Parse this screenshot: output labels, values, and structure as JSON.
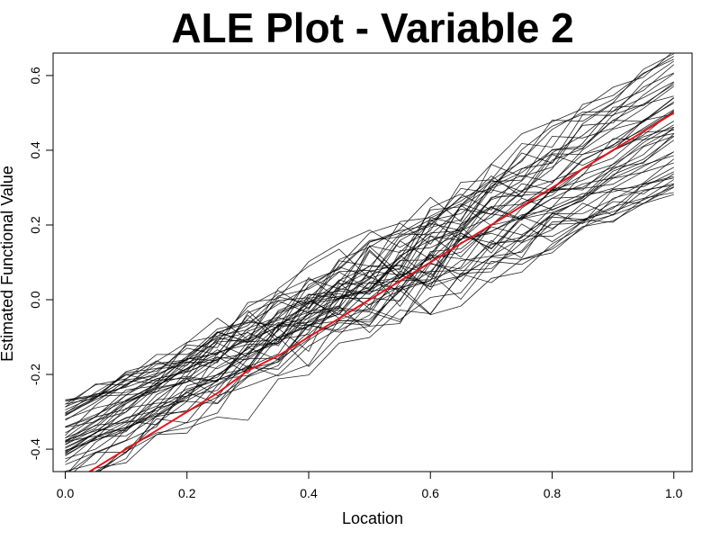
{
  "chart_data": {
    "type": "line",
    "title": "ALE Plot - Variable 2",
    "xlabel": "Location",
    "ylabel": "Estimated Functional Value",
    "xlim": [
      -0.02,
      1.03
    ],
    "ylim": [
      -0.46,
      0.66
    ],
    "x_ticks": [
      0.0,
      0.2,
      0.4,
      0.6,
      0.8,
      1.0
    ],
    "x_tick_labels": [
      "0.0",
      "0.2",
      "0.4",
      "0.6",
      "0.8",
      "1.0"
    ],
    "y_ticks": [
      -0.4,
      -0.2,
      0.0,
      0.2,
      0.4,
      0.6
    ],
    "y_tick_labels": [
      "-0.4",
      "-0.2",
      "0.0",
      "0.2",
      "0.4",
      "0.6"
    ],
    "grid": false,
    "legend": "none",
    "mean_series": {
      "color": "#e8141b",
      "x": [
        0.0,
        0.05,
        0.1,
        0.15,
        0.2,
        0.25,
        0.3,
        0.35,
        0.4,
        0.45,
        0.5,
        0.55,
        0.6,
        0.65,
        0.7,
        0.75,
        0.8,
        0.85,
        0.9,
        0.95,
        1.0
      ],
      "y": [
        -0.5,
        -0.45,
        -0.4,
        -0.35,
        -0.3,
        -0.25,
        -0.19,
        -0.15,
        -0.1,
        -0.05,
        0.0,
        0.05,
        0.1,
        0.15,
        0.2,
        0.25,
        0.3,
        0.35,
        0.4,
        0.45,
        0.5
      ]
    },
    "ensemble": {
      "color": "#000000",
      "count": 50,
      "x": [
        0.0,
        0.05,
        0.1,
        0.15,
        0.2,
        0.25,
        0.3,
        0.35,
        0.4,
        0.45,
        0.5,
        0.55,
        0.6,
        0.65,
        0.7,
        0.75,
        0.8,
        0.85,
        0.9,
        0.95,
        1.0
      ],
      "start_range": [
        -0.52,
        -0.27
      ],
      "end_range": [
        0.28,
        0.66
      ]
    }
  }
}
